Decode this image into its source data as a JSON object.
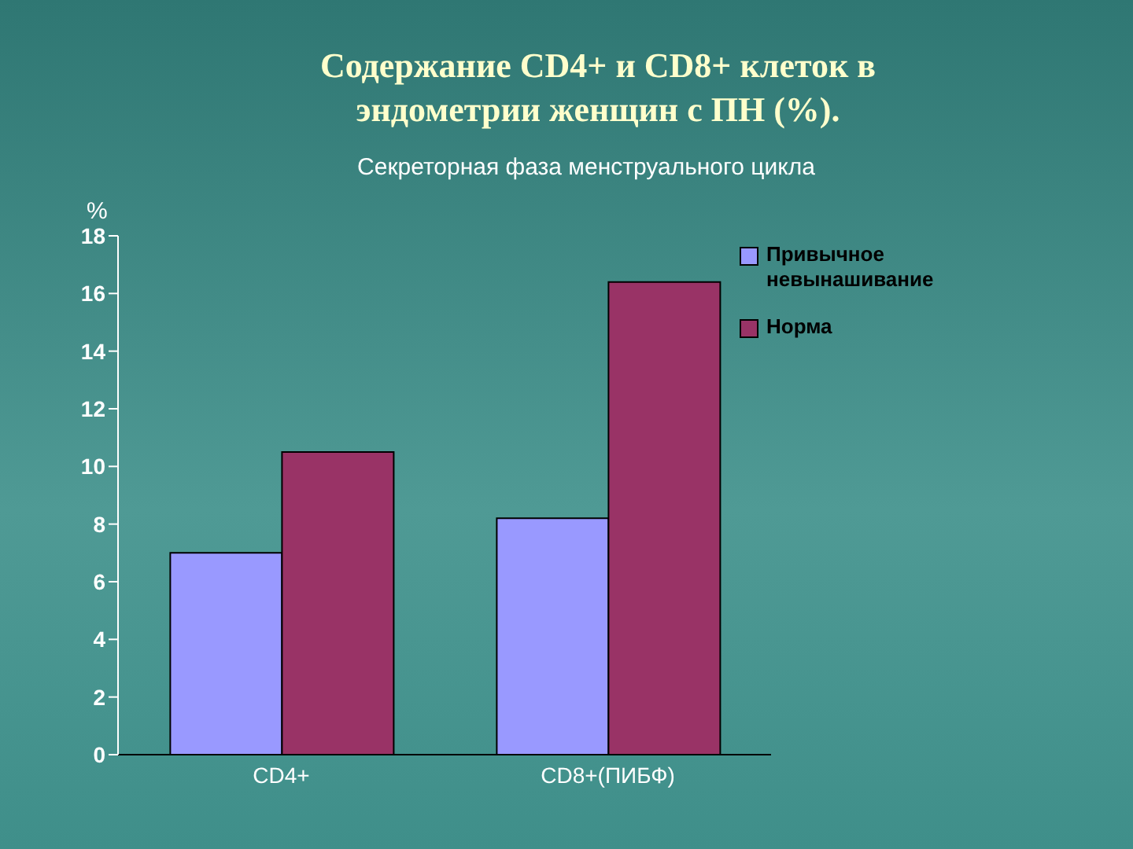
{
  "chart_data": {
    "type": "bar",
    "title": "Содержание CD4+ и CD8+ клеток в эндометрии женщин с ПН (%).",
    "subtitle": "Секреторная фаза менструального цикла",
    "ylabel": "%",
    "categories": [
      "CD4+",
      "CD8+(ПИБФ)"
    ],
    "series": [
      {
        "name": "Привычное невынашивание",
        "color": "#9999ff",
        "values": [
          7.0,
          8.2
        ]
      },
      {
        "name": "Норма",
        "color": "#993366",
        "values": [
          10.5,
          16.4
        ]
      }
    ],
    "ylim": [
      0,
      18
    ],
    "yticks": [
      0,
      2,
      4,
      6,
      8,
      10,
      12,
      14,
      16,
      18
    ],
    "legend": "top right"
  }
}
